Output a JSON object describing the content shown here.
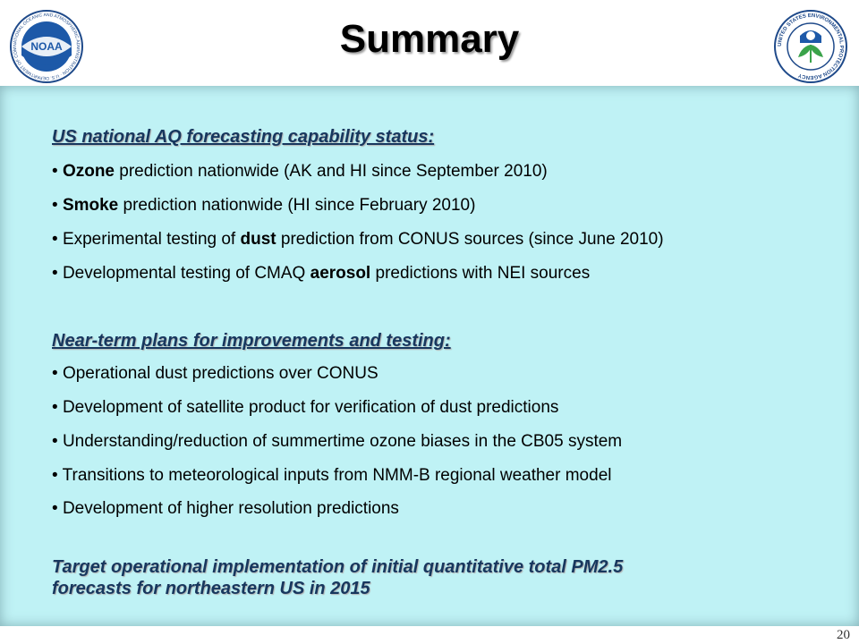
{
  "slide": {
    "title": "Summary",
    "page_number": "20",
    "logos": {
      "left": {
        "name": "noaa-logo",
        "text": "NOAA",
        "ring_text": "NATIONAL OCEANIC AND ATMOSPHERIC ADMINISTRATION · U.S. DEPARTMENT OF COMMERCE"
      },
      "right": {
        "name": "epa-logo",
        "ring_text": "UNITED STATES ENVIRONMENTAL PROTECTION AGENCY"
      }
    },
    "colors": {
      "panel": "#bff2f5",
      "heading": "#17375e"
    }
  },
  "section1": {
    "heading": "US national AQ forecasting capability status:",
    "bullets": [
      {
        "bold": "Ozone",
        "after": " prediction nationwide (AK and HI since September 2010)"
      },
      {
        "bold": "Smoke",
        "after": " prediction nationwide (HI since February 2010)"
      },
      {
        "before": "Experimental testing of ",
        "bold": "dust",
        "after": " prediction from CONUS sources (since June 2010)"
      },
      {
        "before": "Developmental testing of CMAQ ",
        "bold": "aerosol",
        "after": " predictions with NEI sources"
      }
    ]
  },
  "section2": {
    "heading": "Near-term plans for improvements and testing:",
    "bullets": [
      "Operational dust predictions over CONUS",
      "Development of satellite product for verification of dust predictions",
      "Understanding/reduction of summertime ozone biases in the CB05 system",
      "Transitions to meteorological inputs from NMM-B regional weather model",
      "Development of higher resolution predictions"
    ]
  },
  "target": {
    "line1": "Target operational implementation of initial quantitative total PM2.5",
    "line2": "forecasts for northeastern US in 2015"
  }
}
